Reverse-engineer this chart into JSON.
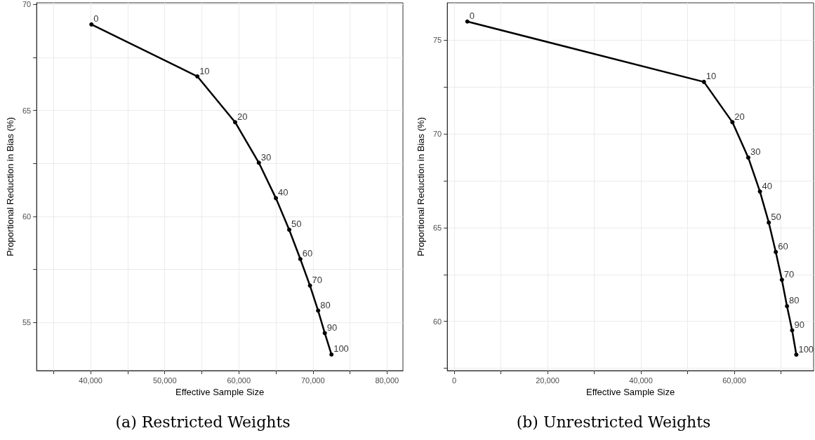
{
  "chart_data": [
    {
      "type": "line",
      "title": "(a) Restricted Weights",
      "xlabel": "Effective Sample Size",
      "ylabel": "Proportional Reduction in Bias (%)",
      "x": [
        40100,
        54400,
        59500,
        62700,
        65000,
        66800,
        68300,
        69600,
        70700,
        71600,
        72500
      ],
      "values": [
        69.05,
        66.6,
        64.44,
        62.53,
        60.86,
        59.37,
        57.99,
        56.74,
        55.56,
        54.5,
        53.49
      ],
      "color": "#000000",
      "marker": "circle",
      "line_style": "solid",
      "grid": true,
      "xlim": [
        32700,
        82150
      ],
      "ylim": [
        52.73,
        70.07
      ],
      "xticks": [
        {
          "value": 35000,
          "label": null
        },
        {
          "value": 40000,
          "label": "40,000"
        },
        {
          "value": 45000,
          "label": null
        },
        {
          "value": 50000,
          "label": "50,000"
        },
        {
          "value": 55000,
          "label": null
        },
        {
          "value": 60000,
          "label": "60,000"
        },
        {
          "value": 65000,
          "label": null
        },
        {
          "value": 70000,
          "label": "70,000"
        },
        {
          "value": 75000,
          "label": null
        },
        {
          "value": 80000,
          "label": "80,000"
        }
      ],
      "yticks": [
        55,
        {
          "value": 57.5,
          "label": null
        },
        60,
        {
          "value": 62.5,
          "label": null
        },
        65,
        {
          "value": 67.5,
          "label": null
        },
        70
      ],
      "annotations": [
        {
          "text": "0",
          "x": 40100,
          "y": 69.05
        },
        {
          "text": "10",
          "x": 54400,
          "y": 66.6
        },
        {
          "text": "20",
          "x": 59500,
          "y": 64.44
        },
        {
          "text": "30",
          "x": 62700,
          "y": 62.53
        },
        {
          "text": "40",
          "x": 65000,
          "y": 60.86
        },
        {
          "text": "50",
          "x": 66800,
          "y": 59.37
        },
        {
          "text": "60",
          "x": 68300,
          "y": 57.99
        },
        {
          "text": "70",
          "x": 69600,
          "y": 56.74
        },
        {
          "text": "80",
          "x": 70700,
          "y": 55.56
        },
        {
          "text": "90",
          "x": 71600,
          "y": 54.5
        },
        {
          "text": "100",
          "x": 72500,
          "y": 53.49
        }
      ]
    },
    {
      "type": "line",
      "title": "(b) Unrestricted Weights",
      "xlabel": "Effective Sample Size",
      "ylabel": "Proportional Reduction in Bias (%)",
      "x": [
        2800,
        53500,
        59600,
        63000,
        65500,
        67400,
        68900,
        70200,
        71300,
        72400,
        73300
      ],
      "values": [
        76.0,
        72.78,
        70.63,
        68.74,
        66.93,
        65.27,
        63.7,
        62.22,
        60.81,
        59.52,
        58.22
      ],
      "color": "#000000",
      "marker": "circle",
      "line_style": "solid",
      "grid": true,
      "xlim": [
        -1500,
        77000
      ],
      "ylim": [
        57.37,
        77.0
      ],
      "xticks": [
        0,
        {
          "value": 10000,
          "label": null
        },
        {
          "value": 20000,
          "label": "20,000"
        },
        {
          "value": 30000,
          "label": null
        },
        {
          "value": 40000,
          "label": "40,000"
        },
        {
          "value": 50000,
          "label": null
        },
        {
          "value": 60000,
          "label": "60,000"
        },
        {
          "value": 70000,
          "label": null
        }
      ],
      "yticks": [
        {
          "value": 57.5,
          "label": null
        },
        60,
        {
          "value": 62.5,
          "label": null
        },
        65,
        {
          "value": 67.5,
          "label": null
        },
        70,
        {
          "value": 72.5,
          "label": null
        },
        75
      ],
      "annotations": [
        {
          "text": "0",
          "x": 2800,
          "y": 76.0
        },
        {
          "text": "10",
          "x": 53500,
          "y": 72.78
        },
        {
          "text": "20",
          "x": 59600,
          "y": 70.63
        },
        {
          "text": "30",
          "x": 63000,
          "y": 68.74
        },
        {
          "text": "40",
          "x": 65500,
          "y": 66.93
        },
        {
          "text": "50",
          "x": 67400,
          "y": 65.27
        },
        {
          "text": "60",
          "x": 68900,
          "y": 63.7
        },
        {
          "text": "70",
          "x": 70200,
          "y": 62.22
        },
        {
          "text": "80",
          "x": 71300,
          "y": 60.81
        },
        {
          "text": "90",
          "x": 72400,
          "y": 59.52
        },
        {
          "text": "100",
          "x": 73300,
          "y": 58.22
        }
      ]
    }
  ]
}
